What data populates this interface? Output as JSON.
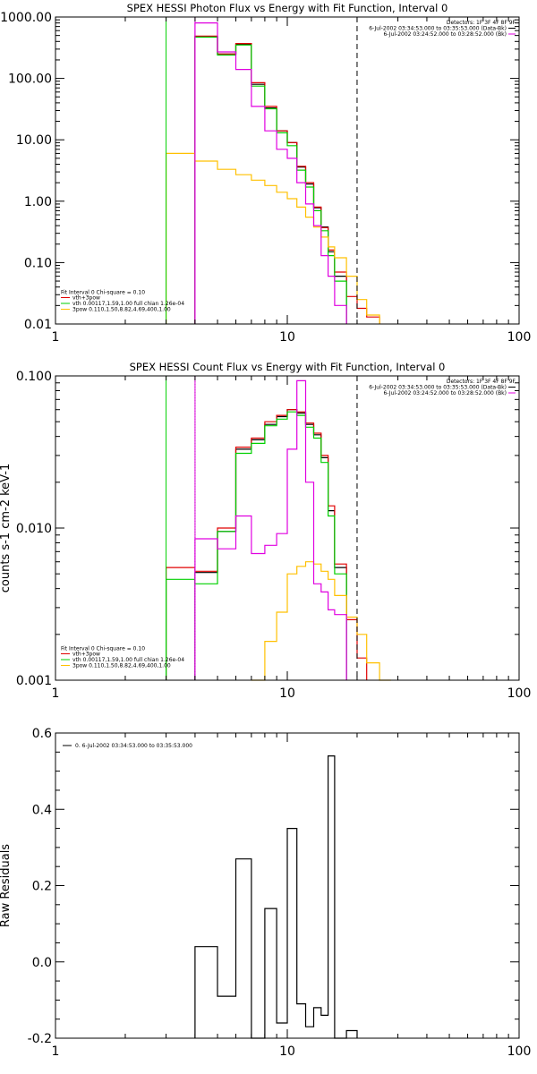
{
  "chart_data": [
    {
      "type": "line",
      "title": "SPEX HESSI Photon Flux vs Energy with Fit Function, Interval 0",
      "xlabel": "",
      "ylabel": "",
      "x_scale": "log",
      "y_scale": "log",
      "xlim": [
        1,
        100
      ],
      "ylim": [
        0.01,
        1000
      ],
      "x_ticks": [
        1,
        10,
        100
      ],
      "x_tick_labels": [
        "1",
        "10",
        "100"
      ],
      "y_ticks": [
        0.01,
        0.1,
        1,
        10,
        100,
        1000
      ],
      "y_tick_labels": [
        "0.01",
        "0.10",
        "1.00",
        "10.00",
        "100.00",
        "1000.00"
      ],
      "bin_edges": [
        3.0,
        4.0,
        5.0,
        6.0,
        7.0,
        8.0,
        9.0,
        10.0,
        11.0,
        12.0,
        13.0,
        14.0,
        15.0,
        16.0,
        18.0,
        20.0,
        22.0,
        25.0
      ],
      "series": [
        {
          "name": "",
          "color": "#000000",
          "style": "step",
          "range": [
            4,
            20
          ],
          "values": [
            480,
            250,
            360,
            80,
            33,
            14,
            9,
            3.6,
            1.9,
            0.78,
            0.38,
            0.15,
            0.06
          ]
        },
        {
          "name": "vth+3pow",
          "color": "#e00000",
          "style": "step",
          "range": [
            4,
            25
          ],
          "values": [
            490,
            250,
            370,
            85,
            35,
            14,
            9,
            3.7,
            2.0,
            0.8,
            0.37,
            0.16,
            0.07,
            0.028,
            0.018,
            0.013
          ]
        },
        {
          "name": "vth 0.00117,1.59,1.00 full chian 1.26e-04",
          "color": "#00d000",
          "style": "step",
          "range": [
            4,
            20
          ],
          "values": [
            470,
            240,
            350,
            75,
            32,
            13,
            8,
            3.2,
            1.7,
            0.7,
            0.33,
            0.13,
            0.05
          ]
        },
        {
          "name": "3pow 0.110,1.50,8.82,4.69,400,1.00",
          "color": "#ffc000",
          "style": "step",
          "range": [
            3,
            25
          ],
          "values": [
            6.0,
            4.5,
            3.3,
            2.7,
            2.2,
            1.8,
            1.4,
            1.1,
            0.8,
            0.55,
            0.38,
            0.26,
            0.18,
            0.12,
            0.06,
            0.025,
            0.014
          ]
        },
        {
          "name": "",
          "color": "#e000e0",
          "style": "step",
          "range": [
            4,
            20
          ],
          "values": [
            800,
            270,
            140,
            35,
            14,
            7,
            5,
            2,
            0.9,
            0.4,
            0.13,
            0.06,
            0.02
          ]
        }
      ],
      "vlines": [
        {
          "x": 3.0,
          "color": "#00d000",
          "style": "solid"
        },
        {
          "x": 4.0,
          "color": "#e000e0",
          "style": "solid"
        },
        {
          "x": 20.0,
          "color": "#000000",
          "style": "dashed"
        }
      ],
      "legend": {
        "position": "bottom-left",
        "header": "Fit Interval 0   Chi-square = 0.10"
      },
      "info": {
        "position": "top-right",
        "lines": [
          "Detectors: 1F 3F 4F 8F 9F",
          "6-Jul-2002 03:34:53.000 to 03:35:53.000 (Data-Bk)",
          "6-Jul-2002 03:24:52.000 to 03:28:52.000 (Bk)"
        ],
        "colors": [
          "",
          "#000000",
          "#e000e0"
        ]
      }
    },
    {
      "type": "line",
      "title": "SPEX HESSI Count Flux vs Energy with Fit Function, Interval 0",
      "xlabel": "",
      "ylabel": "counts s-1 cm-2 keV-1",
      "x_scale": "log",
      "y_scale": "log",
      "xlim": [
        1,
        100
      ],
      "ylim": [
        0.001,
        0.1
      ],
      "x_ticks": [
        1,
        10,
        100
      ],
      "x_tick_labels": [
        "1",
        "10",
        "100"
      ],
      "y_ticks": [
        0.001,
        0.01,
        0.1
      ],
      "y_tick_labels": [
        "0.001",
        "0.010",
        "0.100"
      ],
      "bin_edges": [
        3.0,
        4.0,
        5.0,
        6.0,
        7.0,
        8.0,
        9.0,
        10.0,
        11.0,
        12.0,
        13.0,
        14.0,
        15.0,
        16.0,
        18.0,
        20.0,
        22.0,
        25.0,
        28.0
      ],
      "series": [
        {
          "name": "",
          "color": "#000000",
          "style": "step",
          "range": [
            4,
            20
          ],
          "values": [
            0.0051,
            0.0095,
            0.033,
            0.038,
            0.048,
            0.054,
            0.06,
            0.057,
            0.048,
            0.041,
            0.029,
            0.013,
            0.0055
          ]
        },
        {
          "name": "vth+3pow",
          "color": "#e00000",
          "style": "step",
          "range": [
            3,
            25
          ],
          "values": [
            0.0055,
            0.0052,
            0.01,
            0.034,
            0.039,
            0.05,
            0.055,
            0.06,
            0.058,
            0.049,
            0.042,
            0.03,
            0.014,
            0.0058,
            0.0025,
            0.0014
          ]
        },
        {
          "name": "vth 0.00117,1.59,1.00 full chian 1.26e-04",
          "color": "#00d000",
          "style": "step",
          "range": [
            3,
            20
          ],
          "values": [
            0.0046,
            0.0043,
            0.0095,
            0.031,
            0.036,
            0.047,
            0.052,
            0.058,
            0.055,
            0.046,
            0.039,
            0.027,
            0.012,
            0.005
          ]
        },
        {
          "name": "3pow 0.110,1.50,8.82,4.69,400,1.00",
          "color": "#ffc000",
          "style": "step",
          "range": [
            7,
            28
          ],
          "values": [
            0.001,
            0.0018,
            0.0028,
            0.005,
            0.0056,
            0.006,
            0.0058,
            0.0052,
            0.0046,
            0.0036,
            0.0026,
            0.002,
            0.0013,
            0.001
          ]
        },
        {
          "name": "",
          "color": "#e000e0",
          "style": "step",
          "range": [
            4,
            20
          ],
          "values": [
            0.0085,
            0.0073,
            0.012,
            0.0068,
            0.0077,
            0.0092,
            0.033,
            0.093,
            0.02,
            0.0043,
            0.0038,
            0.0029,
            0.0027
          ]
        }
      ],
      "vlines": [
        {
          "x": 3.0,
          "color": "#00d000",
          "style": "solid"
        },
        {
          "x": 4.0,
          "color": "#000000",
          "style": "dotted"
        },
        {
          "x": 4.0,
          "color": "#e000e0",
          "style": "solid"
        },
        {
          "x": 20.0,
          "color": "#000000",
          "style": "dashed"
        }
      ],
      "legend": {
        "position": "bottom-left",
        "header": "Fit Interval 0   Chi-square = 0.10"
      },
      "info": {
        "position": "top-right",
        "lines": [
          "Detectors: 1F 3F 4F 8F 9F",
          "6-Jul-2002 03:34:53.000 to 03:35:53.000 (Data-Bk)",
          "6-Jul-2002 03:24:52.000 to 03:28:52.000 (Bk)"
        ],
        "colors": [
          "",
          "#000000",
          "#e000e0"
        ]
      }
    },
    {
      "type": "line",
      "title": "",
      "xlabel": "",
      "ylabel": "Raw Residuals",
      "x_scale": "log",
      "y_scale": "linear",
      "xlim": [
        1,
        100
      ],
      "ylim": [
        -0.2,
        0.6
      ],
      "x_ticks": [
        1,
        10,
        100
      ],
      "x_tick_labels": [
        "1",
        "10",
        "100"
      ],
      "y_ticks": [
        -0.2,
        0.0,
        0.2,
        0.4,
        0.6
      ],
      "y_tick_labels": [
        "-0.2",
        "0.0",
        "0.2",
        "0.4",
        "0.6"
      ],
      "bin_edges": [
        4.0,
        5.0,
        6.0,
        7.0,
        8.0,
        9.0,
        10.0,
        11.0,
        12.0,
        13.0,
        14.0,
        15.0,
        16.0,
        18.0,
        20.0
      ],
      "series": [
        {
          "name": "0.  6-Jul-2002 03:34:53.000 to 03:35:53.000",
          "color": "#000000",
          "style": "step",
          "range": [
            4,
            20
          ],
          "values": [
            0.04,
            -0.09,
            0.27,
            -0.2,
            0.14,
            -0.16,
            0.35,
            -0.11,
            -0.17,
            -0.12,
            -0.14,
            0.54,
            -0.2,
            -0.18
          ]
        }
      ],
      "vlines": [],
      "legend": {
        "position": "top-left",
        "header": ""
      },
      "info": null
    }
  ]
}
